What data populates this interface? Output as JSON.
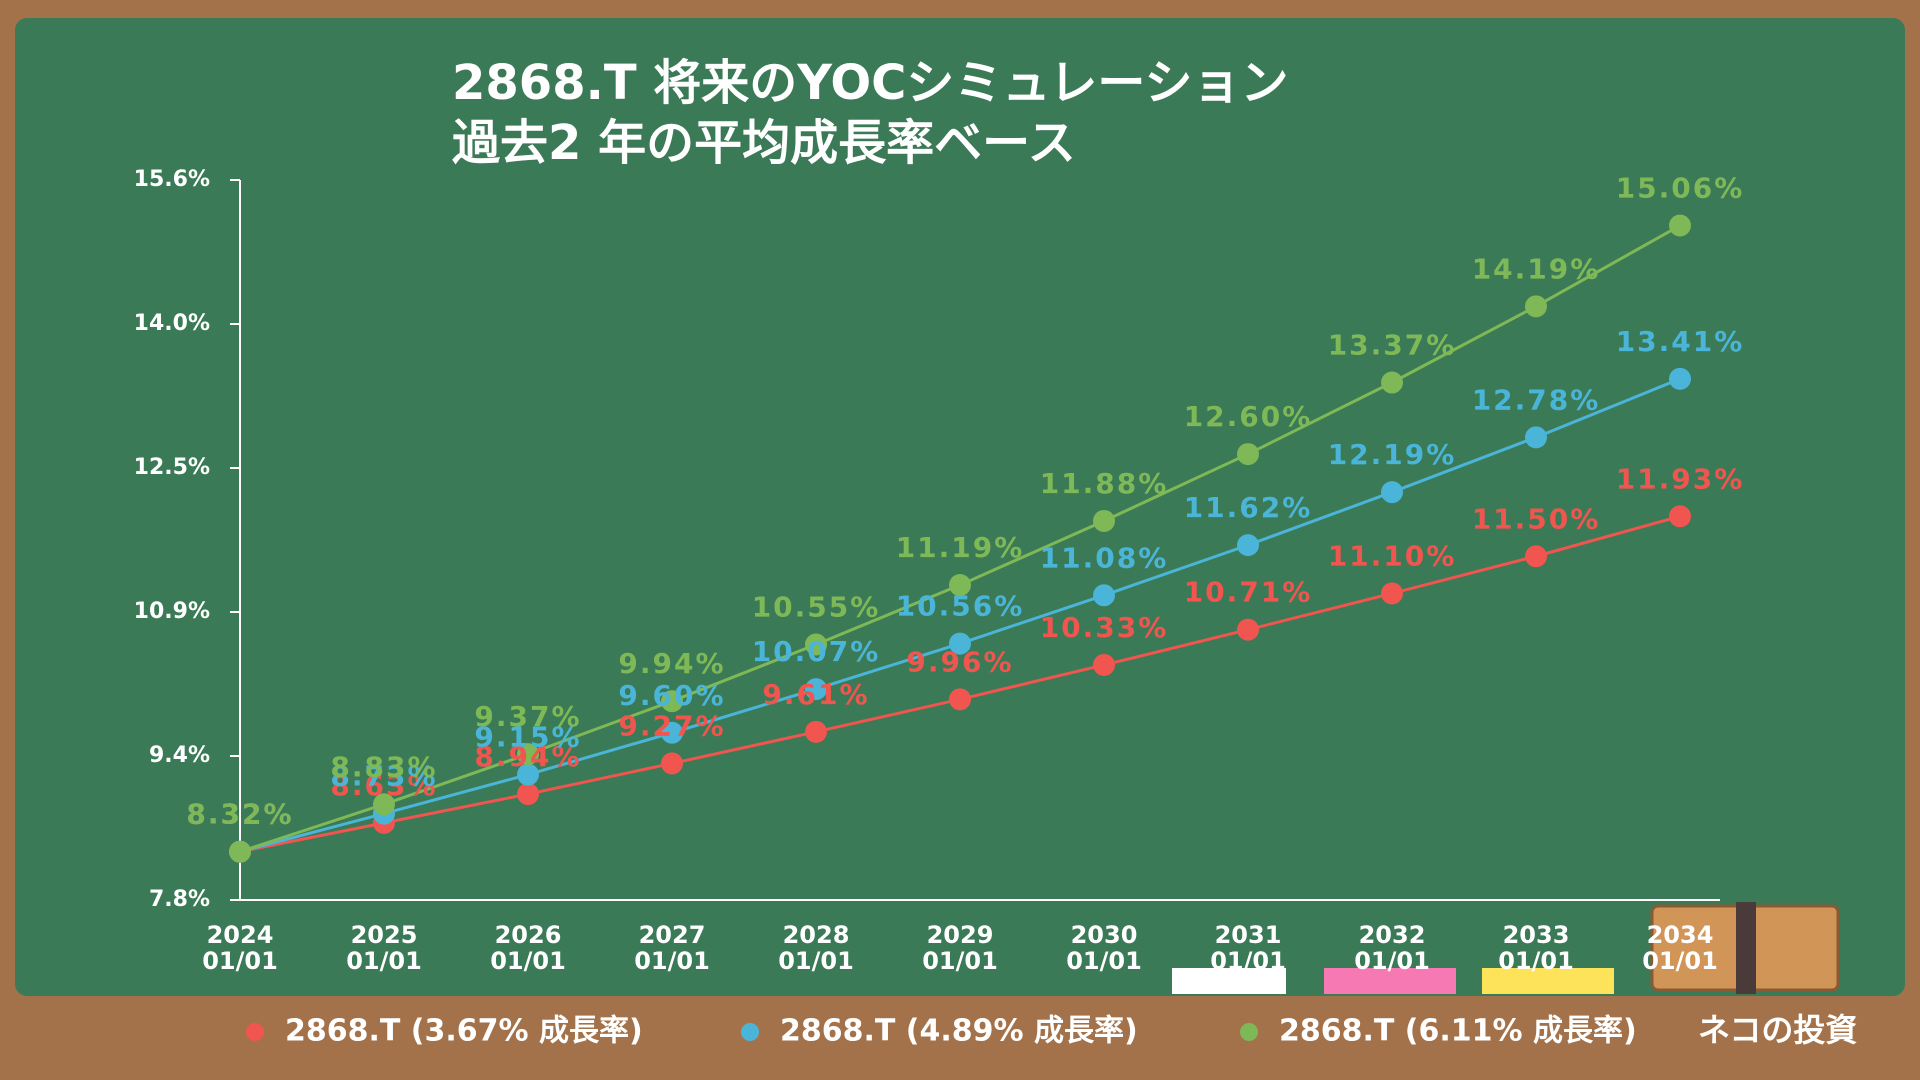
{
  "chart_data": {
    "type": "line",
    "title": "2868.T 将来のYOCシミュレーション",
    "subtitle": "過去2 年の平均成長率ベース",
    "categories": [
      "2024\n01/01",
      "2025\n01/01",
      "2026\n01/01",
      "2027\n01/01",
      "2028\n01/01",
      "2029\n01/01",
      "2030\n01/01",
      "2031\n01/01",
      "2032\n01/01",
      "2033\n01/01",
      "2034\n01/01"
    ],
    "series": [
      {
        "name": "2868.T (3.67% 成長率)",
        "color": "#f0554f",
        "values": [
          8.32,
          8.63,
          8.94,
          9.27,
          9.61,
          9.96,
          10.33,
          10.71,
          11.1,
          11.5,
          11.93
        ],
        "value_labels": [
          "8.32%",
          "8.63%",
          "8.94%",
          "9.27%",
          "9.61%",
          "9.96%",
          "10.33%",
          "10.71%",
          "11.10%",
          "11.50%",
          "11.93%"
        ]
      },
      {
        "name": "2868.T (4.89% 成長率)",
        "color": "#4ab5d8",
        "values": [
          8.32,
          8.73,
          9.15,
          9.6,
          10.07,
          10.56,
          11.08,
          11.62,
          12.19,
          12.78,
          13.41
        ],
        "value_labels": [
          "8.32%",
          "8.73%",
          "9.15%",
          "9.60%",
          "10.07%",
          "10.56%",
          "11.08%",
          "11.62%",
          "12.19%",
          "12.78%",
          "13.41%"
        ]
      },
      {
        "name": "2868.T (6.11% 成長率)",
        "color": "#7fb856",
        "values": [
          8.32,
          8.83,
          9.37,
          9.94,
          10.55,
          11.19,
          11.88,
          12.6,
          13.37,
          14.19,
          15.06
        ],
        "value_labels": [
          "8.32%",
          "8.83%",
          "9.37%",
          "9.94%",
          "10.55%",
          "11.19%",
          "11.88%",
          "12.60%",
          "13.37%",
          "14.19%",
          "15.06%"
        ]
      }
    ],
    "ylim": [
      7.8,
      15.55
    ],
    "yticks": [
      {
        "value": 7.8,
        "label": "7.8%"
      },
      {
        "value": 9.35,
        "label": "9.4%"
      },
      {
        "value": 10.9,
        "label": "10.9%"
      },
      {
        "value": 12.45,
        "label": "12.5%"
      },
      {
        "value": 14.0,
        "label": "14.0%"
      },
      {
        "value": 15.55,
        "label": "15.6%"
      }
    ],
    "grid": false
  },
  "branding": "ネコの投資"
}
